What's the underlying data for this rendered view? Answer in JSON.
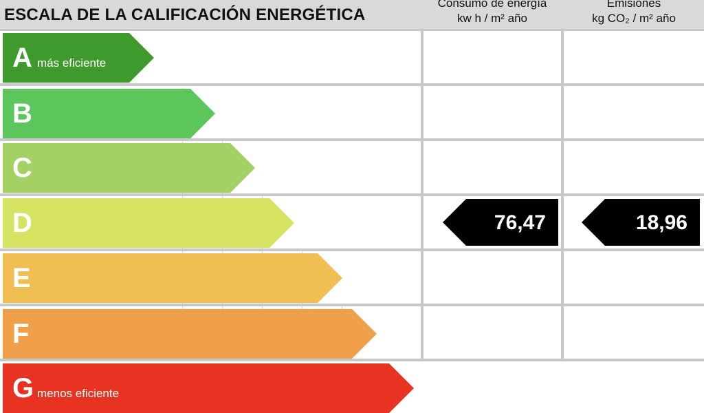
{
  "header": {
    "title": "ESCALA DE LA CALIFICACIÓN ENERGÉTICA",
    "consumo_line1": "Consumo de energía",
    "consumo_line2": "kw h / m² año",
    "emisiones_line1": "Emisiones",
    "emisiones_line2": "kg CO₂ / m² año"
  },
  "ratings": [
    {
      "letter": "A",
      "label": "más eficiente",
      "color": "#3f9a2d"
    },
    {
      "letter": "B",
      "label": "",
      "color": "#5cc55c"
    },
    {
      "letter": "C",
      "label": "",
      "color": "#a3d163"
    },
    {
      "letter": "D",
      "label": "",
      "color": "#d6e262"
    },
    {
      "letter": "E",
      "label": "",
      "color": "#f0be52"
    },
    {
      "letter": "F",
      "label": "",
      "color": "#f0a04a"
    },
    {
      "letter": "G",
      "label": "menos eficiente",
      "color": "#e83323"
    }
  ],
  "current": {
    "rating": "D",
    "consumo": "76,47",
    "emisiones": "18,96"
  },
  "value_color": "#000000"
}
